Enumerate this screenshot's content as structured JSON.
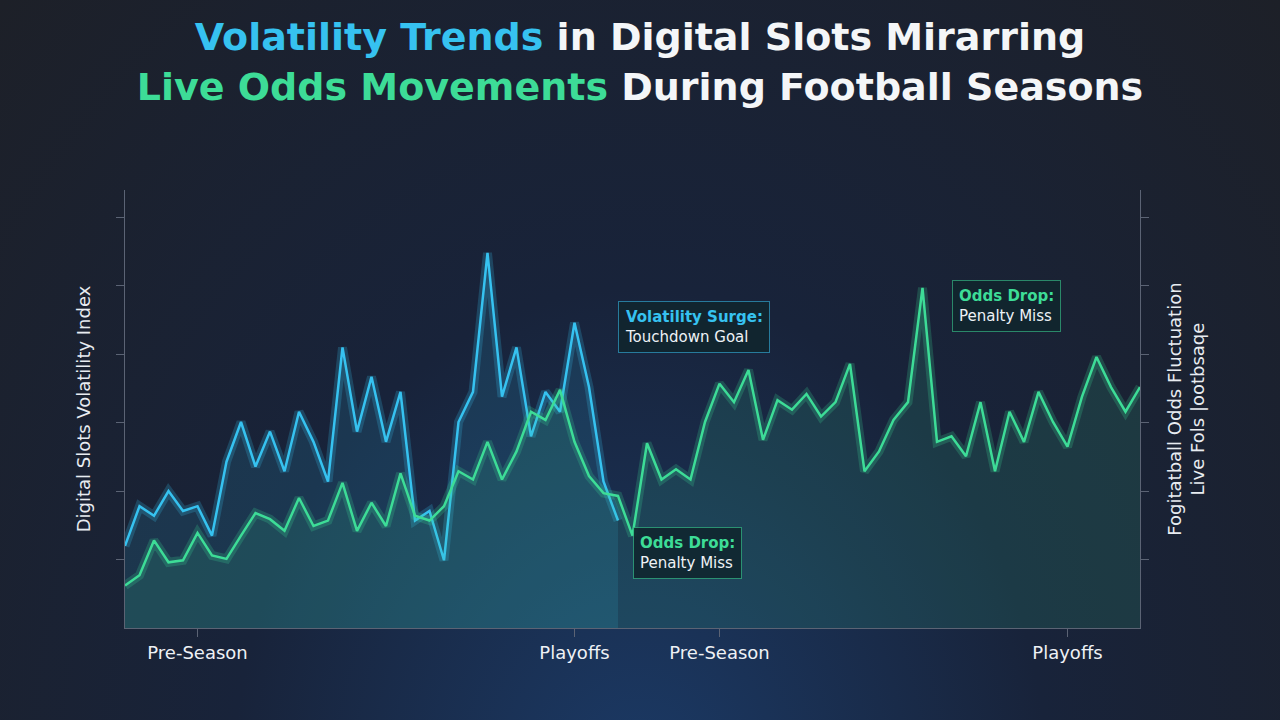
{
  "chart_data": {
    "type": "line",
    "title": [
      [
        {
          "text": "Volatility Trends",
          "color": "#36c2f0"
        },
        {
          "text": " in Digital Slots Mirarring"
        }
      ],
      [
        {
          "text": "Live Odds Movements",
          "color": "#3ddc97"
        },
        {
          "text": " During Football Seasons"
        }
      ]
    ],
    "ylabel": "Digital Slots Volatility Index",
    "y2label": [
      "Fogitatball Odds Fluctuation",
      "Live Fols |ootbsaqe"
    ],
    "categories": [
      null,
      null,
      null,
      null,
      null,
      "Pre-Season",
      null,
      null,
      null,
      null,
      null,
      null,
      null,
      null,
      null,
      null,
      null,
      null,
      null,
      null,
      null,
      null,
      null,
      null,
      null,
      null,
      null,
      null,
      null,
      null,
      null,
      "Playoffs",
      null,
      null,
      null,
      null,
      null,
      null,
      null,
      null,
      null,
      "Pre-Season",
      null,
      null,
      null,
      null,
      null,
      null,
      null,
      null,
      null,
      null,
      null,
      null,
      null,
      null,
      null,
      null,
      null,
      null,
      null,
      null,
      null,
      null,
      null,
      "Playoffs",
      null,
      null,
      null,
      null,
      null
    ],
    "series": [
      {
        "color": "#36c2f0",
        "values": [
          12.0,
          17.8,
          16.4,
          20.0,
          17.1,
          17.8,
          13.5,
          24.3,
          30.1,
          23.6,
          28.7,
          22.9,
          31.6,
          27.2,
          21.4,
          41.0,
          28.7,
          36.7,
          27.2,
          34.5,
          15.7,
          17.1,
          9.9,
          30.1,
          34.5,
          54.8,
          33.8,
          41.0,
          28.0,
          34.5,
          31.6,
          44.6,
          35.2,
          21.4,
          15.7,
          null,
          null,
          null,
          null,
          null,
          null,
          null,
          null,
          null,
          null,
          null,
          null,
          null,
          null,
          null,
          null,
          null,
          null,
          null,
          null,
          null,
          null,
          null,
          null,
          null,
          null,
          null,
          null,
          null,
          null,
          null,
          null,
          null,
          null,
          null,
          null
        ]
      },
      {
        "color": "#3ddc97",
        "axis": "y2",
        "values": [
          6.2,
          7.7,
          12.8,
          9.6,
          9.9,
          13.9,
          10.6,
          10.1,
          13.5,
          16.8,
          15.9,
          14.2,
          19.0,
          14.9,
          15.7,
          21.2,
          14.2,
          18.3,
          14.9,
          22.6,
          16.4,
          15.7,
          17.8,
          22.9,
          21.7,
          27.2,
          21.7,
          25.8,
          31.6,
          30.4,
          34.8,
          27.2,
          22.2,
          19.7,
          19.3,
          13.5,
          27.0,
          21.7,
          23.2,
          21.7,
          30.1,
          35.7,
          33.0,
          37.7,
          27.5,
          33.3,
          31.9,
          34.2,
          30.9,
          33.0,
          38.6,
          22.9,
          25.8,
          30.4,
          33.0,
          49.7,
          27.2,
          28.0,
          25.1,
          33.0,
          22.9,
          31.6,
          27.2,
          34.5,
          30.1,
          26.5,
          33.8,
          39.6,
          35.2,
          31.6,
          35.2
        ]
      }
    ],
    "ylim": [
      0,
      64
    ],
    "yticks": [
      10,
      20,
      30,
      40,
      50,
      60
    ],
    "y2lim": [
      0,
      64
    ],
    "y2ticks": [
      10,
      20,
      30,
      40,
      50,
      60
    ],
    "grid": false,
    "tick_labels": "x",
    "annotations": [
      {
        "x": 34,
        "y": 44,
        "title": "Volatility Surge:",
        "text": "Touchdown Goal",
        "color": "#36c2f0"
      },
      {
        "x": 35,
        "y": 11,
        "title": "Odds Drop:",
        "text": "Penalty Miss",
        "color": "#3ddc97"
      },
      {
        "x": 57,
        "y": 47,
        "title": "Odds Drop:",
        "text": "Penalty Miss",
        "color": "#3ddc97"
      }
    ]
  }
}
